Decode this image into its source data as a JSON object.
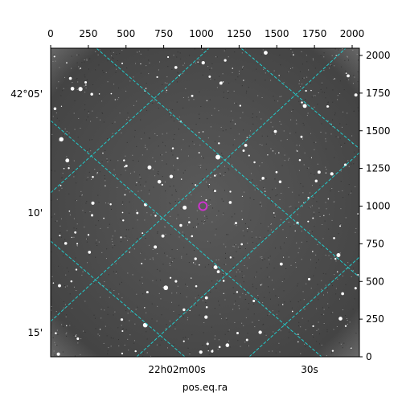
{
  "chart_data": {
    "type": "image",
    "x_label": "pos.eq.ra",
    "xlim": [
      0,
      2048
    ],
    "xticks": [
      0,
      250,
      500,
      750,
      1000,
      1250,
      1500,
      1750,
      2000
    ],
    "ylim": [
      0,
      2048
    ],
    "yticks": [
      0,
      250,
      500,
      750,
      1000,
      1250,
      1500,
      1750,
      2000
    ],
    "ra_ticks": [
      "22h02m00s",
      "30s"
    ],
    "dec_ticks": [
      "42°05'",
      "10'",
      "15'"
    ],
    "marker": {
      "x": [
        1010
      ],
      "y": [
        1000
      ],
      "color": "#cc33cc"
    },
    "grid_color": "#22cccc"
  }
}
